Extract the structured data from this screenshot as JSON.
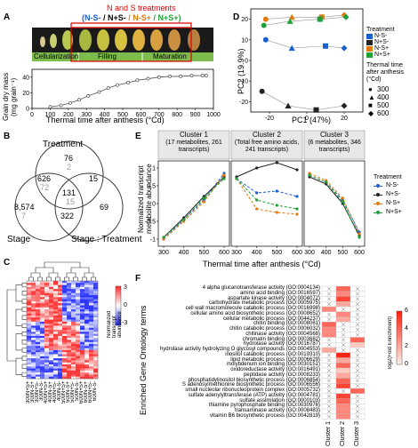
{
  "panels": {
    "A": {
      "letter": "A",
      "treatments_title": "N and S treatments",
      "treatments_list": [
        {
          "text": "(N-S-",
          "color": "#1a5fd0"
        },
        {
          "text": "/ N+S-",
          "color": "#000000"
        },
        {
          "text": "/ N-S+",
          "color": "#e07a10"
        },
        {
          "text": "/ N+S+)",
          "color": "#1fa03a"
        }
      ],
      "stages": [
        "Cellularization",
        "Filling",
        "Maturation"
      ],
      "ylabel": "Grain dry mass (mg grain⁻¹)",
      "xlabel": "Thermal time after anthesis (°Cd)",
      "xticks": [
        "0",
        "100",
        "200",
        "300",
        "400",
        "500",
        "600",
        "700",
        "800",
        "900",
        "1000"
      ],
      "yticks": [
        "0",
        "20",
        "40"
      ]
    },
    "B": {
      "letter": "B",
      "labels": {
        "treatment": "Treatment",
        "stage": "Stage",
        "stage_treatment": "Stage : Treatment"
      },
      "numbers": [
        {
          "v": "76",
          "c": "#000"
        },
        {
          "v": "2",
          "c": "#999"
        },
        {
          "v": "626",
          "c": "#000"
        },
        {
          "v": "72",
          "c": "#999"
        },
        {
          "v": "15",
          "c": "#000"
        },
        {
          "v": "131",
          "c": "#000"
        },
        {
          "v": "15",
          "c": "#999"
        },
        {
          "v": "8,574",
          "c": "#000"
        },
        {
          "v": "7",
          "c": "#999"
        },
        {
          "v": "322",
          "c": "#000"
        },
        {
          "v": "69",
          "c": "#000"
        }
      ]
    },
    "C": {
      "letter": "C",
      "colorbar_label": "Normalized transcript abundance",
      "colorbar_ticks": [
        "3",
        "0",
        "-3"
      ],
      "col_labels": [
        "300N+S+",
        "300N-S+",
        "300N+S-",
        "300N-S-",
        "400N+S+",
        "400N-S+",
        "400N+S-",
        "400N-S-",
        "500N+S+",
        "500N-S+",
        "500N+S-",
        "500N-S-",
        "600N+S+",
        "600N-S+",
        "600N+S-",
        "600N-S-"
      ]
    },
    "D": {
      "letter": "D",
      "xlabel": "PC1 (47%)",
      "ylabel": "PC2 (19.9%)",
      "xticks": [
        "-20",
        "0",
        "20"
      ],
      "yticks": [
        "20",
        "10",
        "0",
        "-10",
        "-20"
      ],
      "legend_treatment_title": "Treatment",
      "legend_treatments": [
        {
          "name": "N-S-",
          "color": "#1a5fd0"
        },
        {
          "name": "N+S-",
          "color": "#222222"
        },
        {
          "name": "N-S+",
          "color": "#e07a10"
        },
        {
          "name": "N+S+",
          "color": "#1fa03a"
        }
      ],
      "legend_time_title": "Thermal time after anthesis (°Cd)",
      "legend_times": [
        "300",
        "400",
        "500",
        "600"
      ]
    },
    "E": {
      "letter": "E",
      "clusters": [
        {
          "title": "Cluster 1",
          "subtitle": "(17 metabolites, 261 transcripts)"
        },
        {
          "title": "Cluster 2",
          "subtitle": "(Total free amino acids, 241 transcripts)"
        },
        {
          "title": "Cluster 3",
          "subtitle": "(6 metabolites, 346 transcripts)"
        }
      ],
      "ylabel": "Normalized transcript metabolite abundance",
      "xlabel": "Thermal time after anthesis (°Cd)",
      "xticks": [
        "300",
        "400",
        "500",
        "600"
      ],
      "yticks": [
        "1",
        "0.5",
        "0",
        "-0.5",
        "-1"
      ],
      "legend_title": "Treatment",
      "legend": [
        "N-S-",
        "N+S-",
        "N-S+",
        "N+S+"
      ]
    },
    "F": {
      "letter": "F",
      "ylabel": "Enriched Gene Ontology terms",
      "colorbar_label": "log2(Fold Enrichment)",
      "colorbar_ticks": [
        "6",
        "4",
        "2",
        "0"
      ],
      "clusters": [
        "Cluster 1",
        "Cluster 2",
        "Cluster 3"
      ],
      "terms": [
        "4 alpha glucanotransferase activity (GO:0004134)",
        "amino acid binding (GO:0016597)",
        "aspartate kinase activity (GO:0004072)",
        "carbohydrate metabolic process (GO:0005975)",
        "cell wall macromolecule catabolic process (GO:0016998)",
        "cellular amino acid biosynthetic process (GO:0008652)",
        "cellular metabolic process (GO:0044237)",
        "chitin binding (GO:0008061)",
        "chitin catabolic process (GO:0006032)",
        "chitinase activity (GO:0004568)",
        "chromatin binding (GO:0003682)",
        "hydrolase activity (GO:0016787)",
        "hydrolase activity hydrolyzing O glycosyl compounds (GO:0004553)",
        "inositol catabolic process (GO:0019310)",
        "lipid metabolic process (GO:0006629)",
        "molybdenum ion binding (GO:0030151)",
        "oxidoreductase activity (GO:0016491)",
        "peptidase activity (GO:0008233)",
        "phosphatidylinositol biosynthetic process (GO:0006854)",
        "S adenosylmethionine biosynthetic process (GO:0006556)",
        "small nucleolar ribonucleoprotein complex (GO:0005732)",
        "sulfate adenylyltransferase (ATP) activity (GO:0004781)",
        "sulfate assimilation (GO:0000103)",
        "thiamine pyrophosphate binding (GO:0030976)",
        "transaminase activity (GO:0008483)",
        "vitamin B6 biosynthetic process (GO:0042819)"
      ]
    }
  },
  "chart_data": [
    {
      "type": "scatter",
      "title": "",
      "xlabel": "Thermal time after anthesis (°Cd)",
      "ylabel": "Grain dry mass (mg grain⁻¹)",
      "xlim": [
        0,
        1000
      ],
      "ylim": [
        0,
        50
      ],
      "x": [
        100,
        160,
        210,
        260,
        310,
        370,
        420,
        470,
        530,
        580,
        640,
        700,
        760,
        820,
        880,
        940,
        960
      ],
      "y": [
        2,
        4,
        7,
        11,
        16,
        21,
        26,
        30,
        33,
        36,
        38,
        40,
        41,
        41,
        42,
        42,
        42
      ]
    },
    {
      "type": "scatter",
      "title": "",
      "xlabel": "PC1 (47%)",
      "ylabel": "PC2 (19.9%)",
      "xlim": [
        -30,
        30
      ],
      "ylim": [
        -25,
        25
      ],
      "series": [
        {
          "name": "N-S-",
          "values": [
            [
              -22,
              10
            ],
            [
              -8,
              6
            ],
            [
              10,
              7
            ],
            [
              20,
              6
            ]
          ]
        },
        {
          "name": "N+S-",
          "values": [
            [
              -24,
              -15
            ],
            [
              -10,
              -22
            ],
            [
              5,
              -24
            ],
            [
              20,
              -22
            ]
          ]
        },
        {
          "name": "N-S+",
          "values": [
            [
              -22,
              20
            ],
            [
              -8,
              21
            ],
            [
              8,
              21
            ],
            [
              20,
              22
            ]
          ]
        },
        {
          "name": "N+S+",
          "values": [
            [
              -23,
              17
            ],
            [
              -9,
              19
            ],
            [
              7,
              20
            ],
            [
              21,
              21
            ]
          ]
        }
      ]
    },
    {
      "type": "line",
      "title": "Cluster 1",
      "x": [
        300,
        400,
        500,
        600
      ],
      "ylim": [
        -1.2,
        1.2
      ],
      "series": [
        {
          "name": "N-S-",
          "values": [
            -1.0,
            -0.45,
            0.1,
            0.85
          ]
        },
        {
          "name": "N+S-",
          "values": [
            -0.95,
            -0.4,
            0.2,
            0.75
          ]
        },
        {
          "name": "N-S+",
          "values": [
            -1.0,
            -0.5,
            0.05,
            0.8
          ]
        },
        {
          "name": "N+S+",
          "values": [
            -0.95,
            -0.45,
            0.15,
            0.7
          ]
        }
      ]
    },
    {
      "type": "line",
      "title": "Cluster 2",
      "x": [
        300,
        400,
        500,
        600
      ],
      "ylim": [
        -1.2,
        1.2
      ],
      "series": [
        {
          "name": "N-S-",
          "values": [
            0.7,
            0.3,
            0.35,
            0.2
          ]
        },
        {
          "name": "N+S-",
          "values": [
            0.75,
            1.0,
            1.15,
            0.95
          ]
        },
        {
          "name": "N-S+",
          "values": [
            0.7,
            -0.15,
            -0.25,
            -0.3
          ]
        },
        {
          "name": "N+S+",
          "values": [
            0.7,
            0.1,
            -0.05,
            -0.15
          ]
        }
      ]
    },
    {
      "type": "line",
      "title": "Cluster 3",
      "x": [
        300,
        400,
        500,
        600
      ],
      "ylim": [
        -1.2,
        1.2
      ],
      "series": [
        {
          "name": "N-S-",
          "values": [
            0.8,
            0.6,
            0.1,
            -0.8
          ]
        },
        {
          "name": "N+S-",
          "values": [
            0.75,
            0.55,
            0.0,
            -0.9
          ]
        },
        {
          "name": "N-S+",
          "values": [
            0.85,
            0.65,
            0.15,
            -0.85
          ]
        },
        {
          "name": "N+S+",
          "values": [
            0.8,
            0.6,
            0.05,
            -0.95
          ]
        }
      ]
    }
  ]
}
